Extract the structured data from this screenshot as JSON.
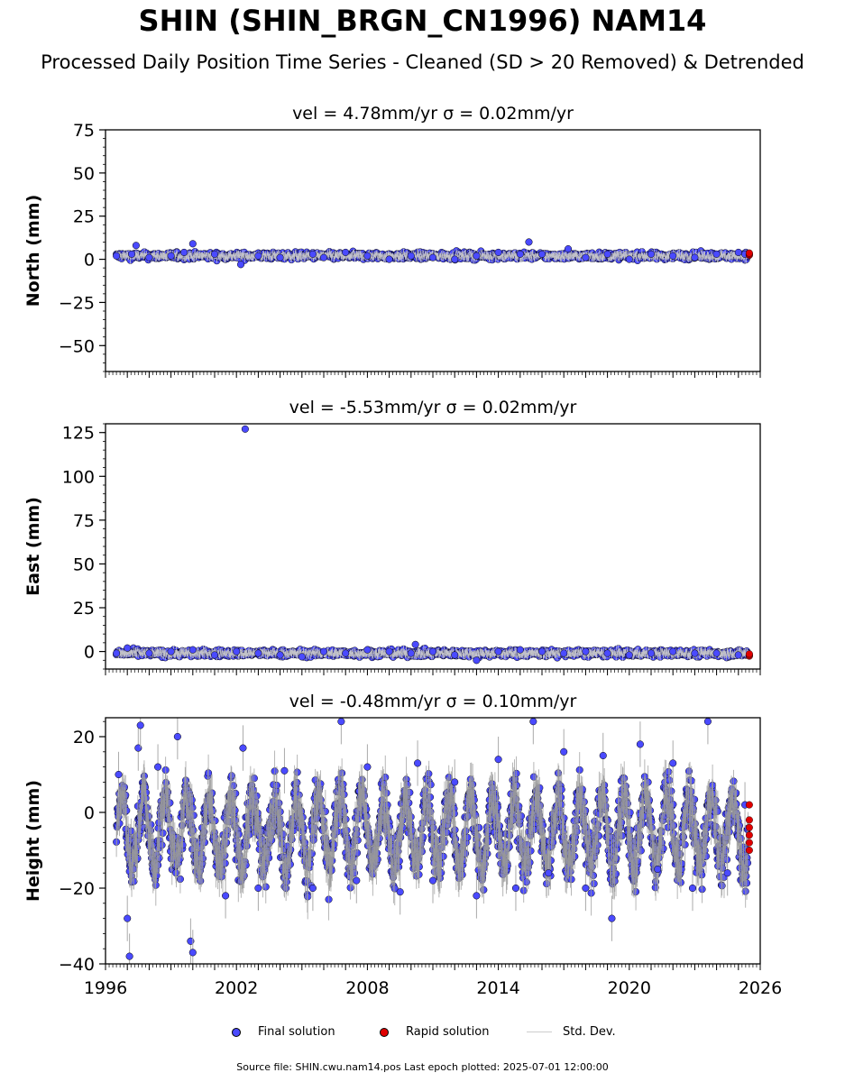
{
  "title": "SHIN (SHIN_BRGN_CN1996) NAM14",
  "subtitle": "Processed Daily Position Time Series - Cleaned (SD > 20 Removed) & Detrended",
  "legend": {
    "final": "Final solution",
    "rapid": "Rapid solution",
    "std": "Std. Dev."
  },
  "footer": "Source file: SHIN.cwu.nam14.pos  Last epoch plotted: 2025-07-01 12:00:00",
  "colors": {
    "final": "#4a4aff",
    "rapid": "#e00000",
    "std": "#aaaaaa"
  },
  "chart_data": [
    {
      "type": "scatter",
      "title": "vel = 4.78mm/yr   σ = 0.02mm/yr",
      "ylabel": "North (mm)",
      "xlabel": "",
      "xlim": [
        1996,
        2026
      ],
      "ylim": [
        -65,
        75
      ],
      "yticks": [
        75,
        50,
        25,
        0,
        -25,
        -50
      ],
      "grid": false,
      "series": [
        {
          "name": "Final solution",
          "x": [
            1996.5,
            1997.2,
            1997.4,
            1998.0,
            1999.0,
            1999.6,
            2000.0,
            2001.0,
            2002.2,
            2003.0,
            2004.0,
            2005.5,
            2006.0,
            2007.0,
            2008.0,
            2009.0,
            2010.0,
            2011.0,
            2012.0,
            2013.0,
            2014.0,
            2015.0,
            2015.4,
            2016.0,
            2017.2,
            2018.0,
            2019.0,
            2020.0,
            2021.0,
            2022.0,
            2023.0,
            2024.0,
            2025.0,
            2025.3
          ],
          "y": [
            2,
            3,
            8,
            1,
            2,
            4,
            9,
            3,
            -3,
            2,
            1,
            3,
            1,
            4,
            2,
            0,
            2,
            1,
            0,
            2,
            4,
            3,
            10,
            3,
            6,
            1,
            3,
            0,
            3,
            2,
            1,
            3,
            4,
            3
          ]
        },
        {
          "name": "Rapid solution",
          "x": [
            2025.5
          ],
          "y": [
            3
          ]
        }
      ]
    },
    {
      "type": "scatter",
      "title": "vel = -5.53mm/yr   σ = 0.02mm/yr",
      "ylabel": "East (mm)",
      "xlabel": "",
      "xlim": [
        1996,
        2026
      ],
      "ylim": [
        -10,
        130
      ],
      "yticks": [
        125,
        100,
        75,
        50,
        25,
        0
      ],
      "grid": false,
      "series": [
        {
          "name": "Final solution",
          "x": [
            1996.5,
            1997.0,
            1998.0,
            1999.0,
            2000.0,
            2001.0,
            2002.0,
            2002.4,
            2003.0,
            2004.0,
            2005.0,
            2006.0,
            2007.0,
            2008.0,
            2009.0,
            2010.0,
            2010.2,
            2011.0,
            2012.0,
            2013.0,
            2014.0,
            2015.0,
            2016.0,
            2017.0,
            2018.0,
            2019.0,
            2020.0,
            2021.0,
            2022.0,
            2023.0,
            2024.0,
            2025.0
          ],
          "y": [
            -1,
            2,
            -1,
            0,
            1,
            -2,
            0,
            127,
            -1,
            -2,
            -3,
            0,
            -1,
            1,
            0,
            -1,
            4,
            0,
            -2,
            -5,
            0,
            1,
            0,
            -1,
            0,
            -1,
            -2,
            -1,
            0,
            -1,
            -1,
            -2
          ]
        },
        {
          "name": "Rapid solution",
          "x": [
            2025.5
          ],
          "y": [
            -2
          ]
        }
      ]
    },
    {
      "type": "scatter",
      "title": "vel = -0.48mm/yr   σ = 0.10mm/yr",
      "ylabel": "Height (mm)",
      "xlabel": "",
      "xlim": [
        1996,
        2026
      ],
      "ylim": [
        -40,
        25
      ],
      "yticks": [
        20,
        0,
        -20,
        -40
      ],
      "xticks": [
        1996,
        2002,
        2008,
        2014,
        2020,
        2026
      ],
      "grid": false,
      "series": [
        {
          "name": "Final solution",
          "x": [
            1996.6,
            1997.0,
            1997.1,
            1997.5,
            1997.6,
            1998.4,
            1999.3,
            1999.9,
            2000.0,
            2001.5,
            2002.3,
            2003.0,
            2004.2,
            2005.5,
            2006.8,
            2007.5,
            2008.0,
            2009.5,
            2010.3,
            2011.0,
            2012.0,
            2013.0,
            2014.0,
            2014.8,
            2015.6,
            2016.3,
            2017.0,
            2018.0,
            2018.8,
            2019.2,
            2020.5,
            2021.3,
            2022.0,
            2022.9,
            2023.6,
            2024.5,
            2025.3
          ],
          "y": [
            10,
            -28,
            -38,
            17,
            23,
            12,
            20,
            -34,
            -37,
            -22,
            17,
            -20,
            11,
            -20,
            24,
            -18,
            12,
            -21,
            13,
            -18,
            8,
            -22,
            14,
            -20,
            24,
            -16,
            16,
            -20,
            15,
            -28,
            18,
            -15,
            13,
            -20,
            24,
            -16,
            2
          ]
        },
        {
          "name": "Rapid solution",
          "x": [
            2025.5
          ],
          "y": [
            -6
          ]
        }
      ]
    }
  ]
}
